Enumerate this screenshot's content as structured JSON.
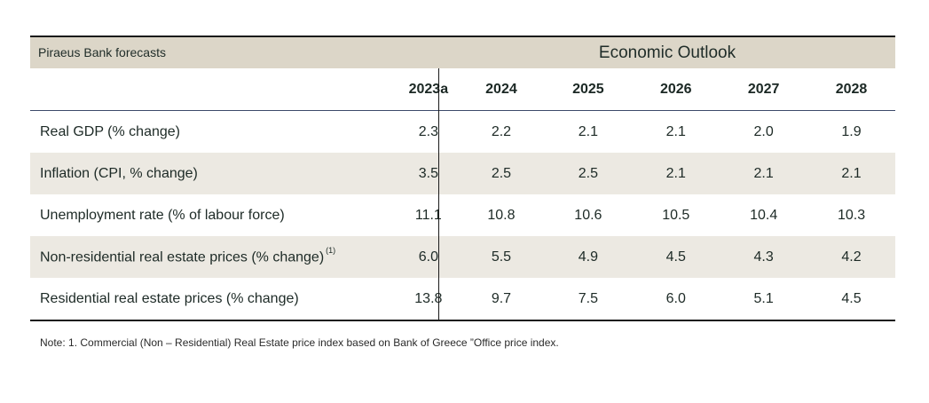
{
  "header": {
    "left_title": "Piraeus Bank forecasts",
    "right_title": "Economic Outlook"
  },
  "columns": [
    "2023a",
    "2024",
    "2025",
    "2026",
    "2027",
    "2028"
  ],
  "rows": [
    {
      "label": "Real GDP (% change)",
      "footnote": "",
      "values": [
        "2.3",
        "2.2",
        "2.1",
        "2.1",
        "2.0",
        "1.9"
      ]
    },
    {
      "label": "Inflation (CPI, % change)",
      "footnote": "",
      "values": [
        "3.5",
        "2.5",
        "2.5",
        "2.1",
        "2.1",
        "2.1"
      ]
    },
    {
      "label": "Unemployment rate (% of labour  force)",
      "footnote": "",
      "values": [
        "11.1",
        "10.8",
        "10.6",
        "10.5",
        "10.4",
        "10.3"
      ]
    },
    {
      "label": "Non-residential real estate prices (% change)",
      "footnote": "(1)",
      "values": [
        "6.0",
        "5.5",
        "4.9",
        "4.5",
        "4.3",
        "4.2"
      ]
    },
    {
      "label": "Residential real estate prices (% change)",
      "footnote": "",
      "values": [
        "13.8",
        "9.7",
        "7.5",
        "6.0",
        "5.1",
        "4.5"
      ]
    }
  ],
  "note": "Note: 1. Commercial (Non – Residential) Real Estate price index based on Bank of Greece ”Office price index.",
  "colors": {
    "band": "#dcd6c8",
    "shaded_row": "#ece9e2",
    "text": "#1d2a26",
    "rule": "#1a1a1a"
  }
}
